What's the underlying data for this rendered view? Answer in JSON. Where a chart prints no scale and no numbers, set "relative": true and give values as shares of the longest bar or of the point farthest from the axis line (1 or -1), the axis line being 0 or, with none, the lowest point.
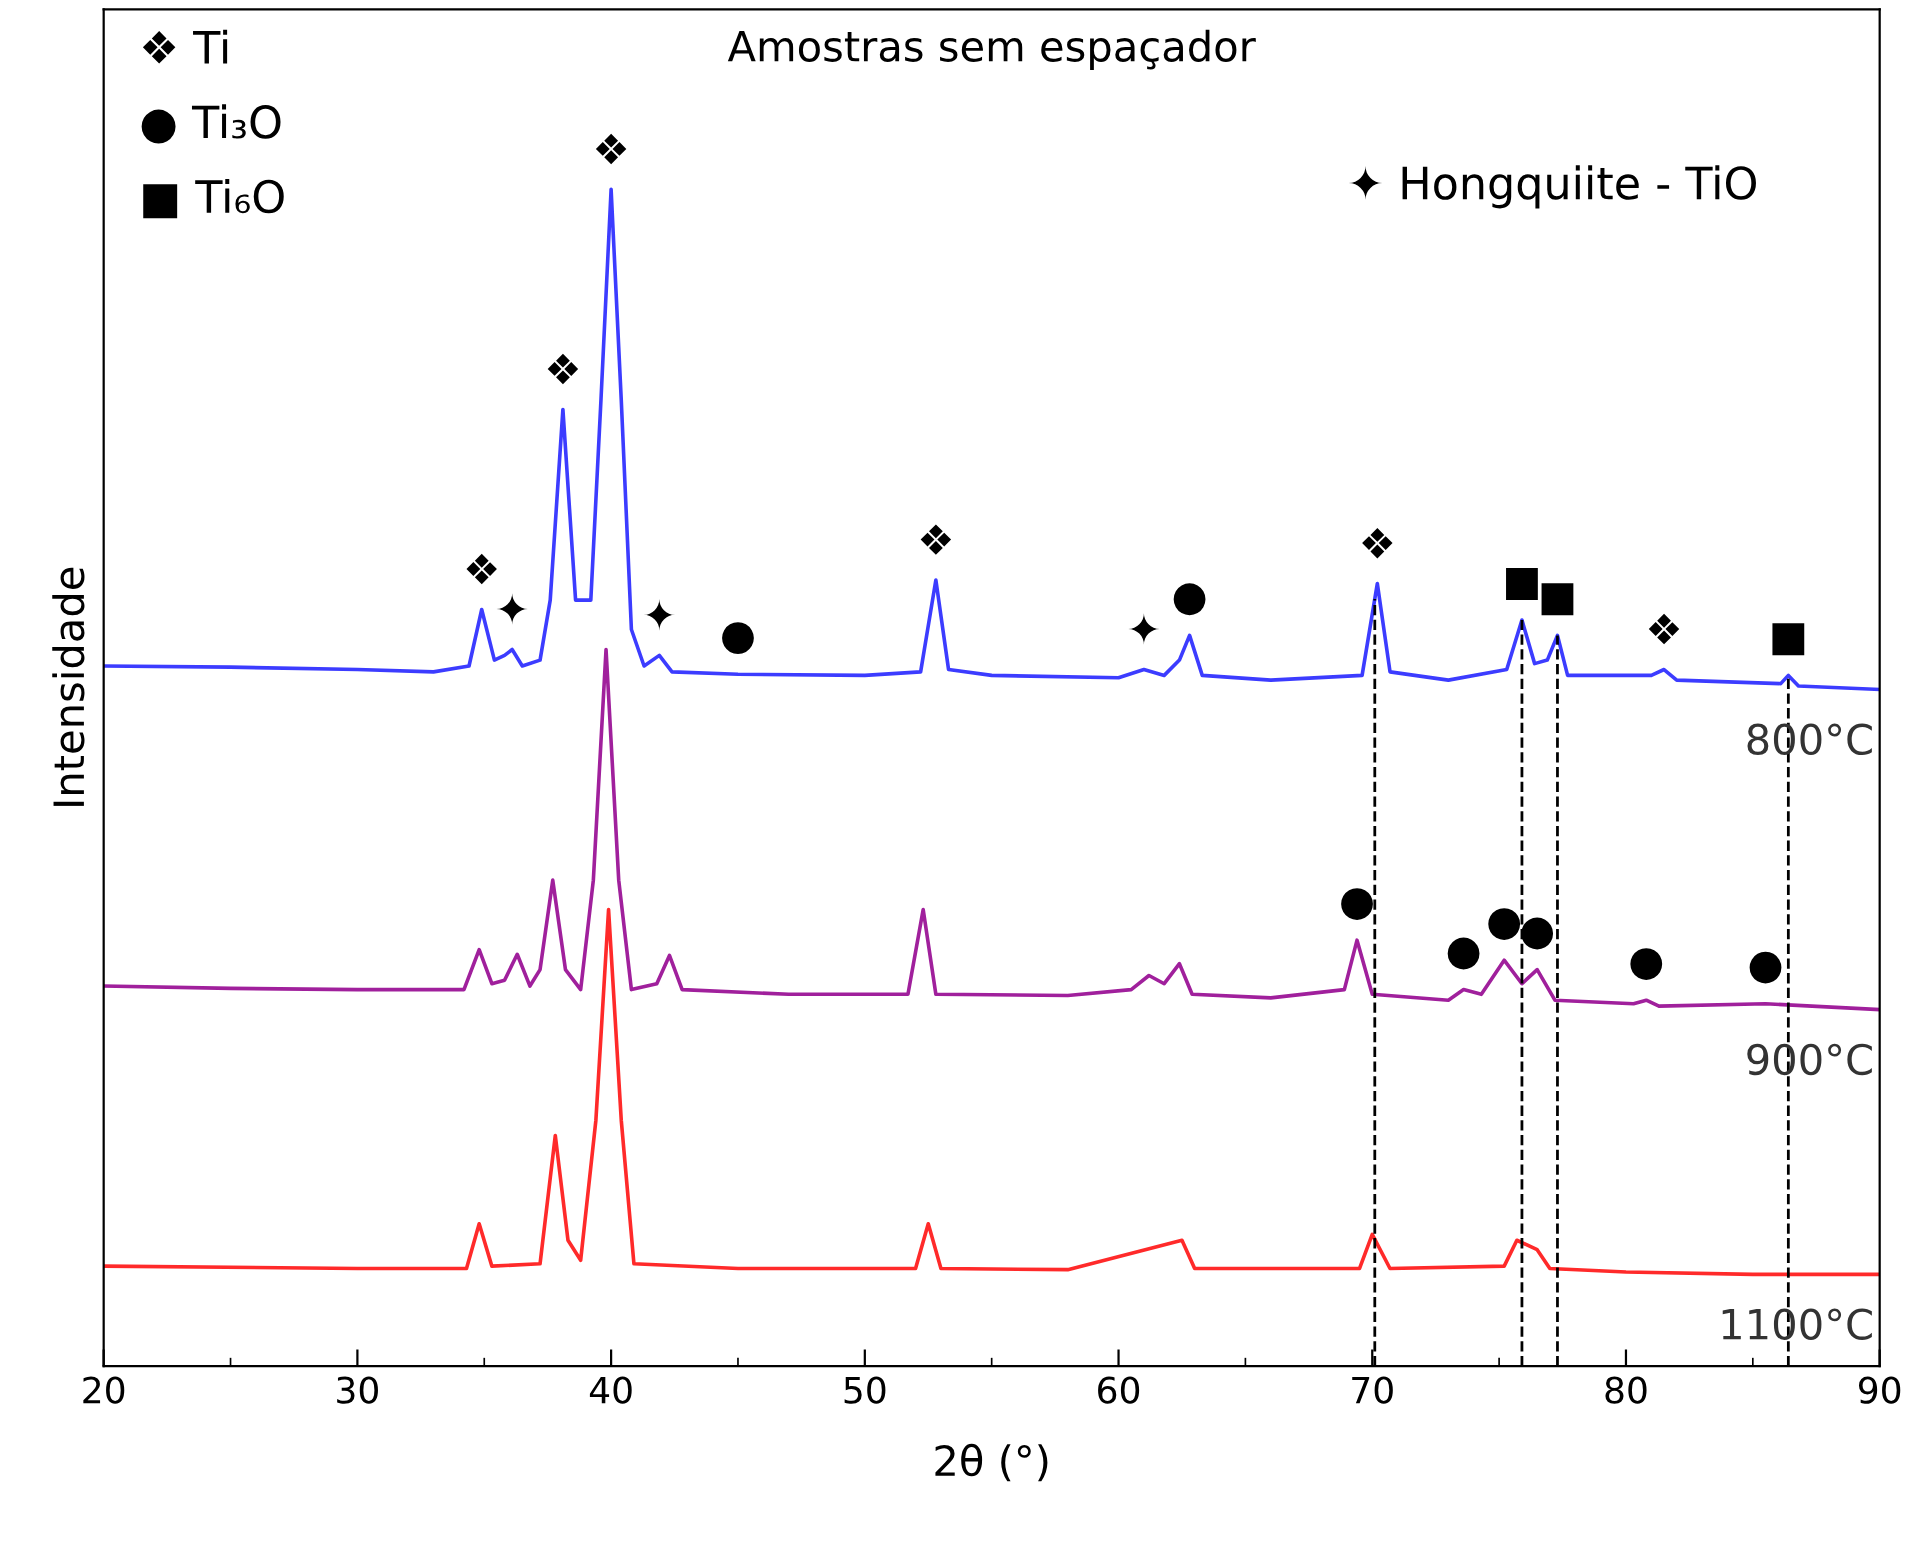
{
  "chart_data": {
    "type": "line",
    "title": "Amostras sem espaçador",
    "xlabel": "2θ (°)",
    "ylabel": "Intensidade",
    "relative": true,
    "xlim": [
      20,
      90
    ],
    "xticks": [
      20,
      30,
      40,
      50,
      60,
      70,
      80,
      90
    ],
    "grid": false,
    "legend": false,
    "marker": "none",
    "line_style": "solid",
    "series": [
      {
        "name": "800°C",
        "color": "#3c3cff",
        "x": [
          20,
          25,
          30,
          33,
          34.4,
          34.9,
          35.4,
          35.8,
          36.1,
          36.5,
          37.2,
          37.6,
          38.1,
          38.6,
          39.2,
          39.6,
          40.0,
          40.4,
          40.8,
          41.3,
          41.9,
          42.4,
          45,
          50,
          52.2,
          52.8,
          53.3,
          55,
          60,
          61,
          61.8,
          62.4,
          62.8,
          63.3,
          66,
          69.6,
          70.2,
          70.7,
          73,
          75.3,
          75.9,
          76.4,
          76.9,
          77.3,
          77.7,
          81,
          81.5,
          82,
          86.1,
          86.4,
          86.8,
          90
        ],
        "values": [
          0.595,
          0.594,
          0.592,
          0.59,
          0.595,
          0.643,
          0.6,
          0.604,
          0.609,
          0.595,
          0.6,
          0.651,
          0.813,
          0.651,
          0.651,
          0.821,
          1.0,
          0.821,
          0.626,
          0.595,
          0.604,
          0.59,
          0.588,
          0.587,
          0.59,
          0.668,
          0.592,
          0.587,
          0.585,
          0.592,
          0.587,
          0.6,
          0.621,
          0.587,
          0.583,
          0.587,
          0.665,
          0.59,
          0.583,
          0.592,
          0.634,
          0.597,
          0.6,
          0.621,
          0.587,
          0.587,
          0.592,
          0.583,
          0.58,
          0.587,
          0.578,
          0.575
        ]
      },
      {
        "name": "900°C",
        "color": "#a0209c",
        "x": [
          20,
          25,
          30,
          34.2,
          34.8,
          35.3,
          35.8,
          36.3,
          36.8,
          37.2,
          37.7,
          38.2,
          38.8,
          39.3,
          39.8,
          40.3,
          40.8,
          41.8,
          42.3,
          42.8,
          47,
          51.7,
          52.3,
          52.8,
          58,
          60.5,
          61.2,
          61.8,
          62.4,
          62.9,
          66,
          68.9,
          69.4,
          70,
          73,
          73.6,
          74.3,
          75.2,
          75.9,
          76.5,
          77.2,
          80.3,
          80.8,
          81.3,
          85.5,
          90
        ],
        "values": [
          0.323,
          0.321,
          0.32,
          0.32,
          0.354,
          0.325,
          0.328,
          0.35,
          0.323,
          0.337,
          0.413,
          0.337,
          0.32,
          0.413,
          0.609,
          0.413,
          0.32,
          0.325,
          0.349,
          0.32,
          0.316,
          0.316,
          0.388,
          0.316,
          0.315,
          0.32,
          0.332,
          0.325,
          0.342,
          0.316,
          0.313,
          0.32,
          0.362,
          0.316,
          0.311,
          0.32,
          0.316,
          0.345,
          0.325,
          0.337,
          0.311,
          0.308,
          0.311,
          0.306,
          0.308,
          0.303
        ]
      },
      {
        "name": "1100°C",
        "color": "#ff2a2a",
        "x": [
          20,
          30,
          34.3,
          34.8,
          35.3,
          37.2,
          37.8,
          38.3,
          38.8,
          39.4,
          39.9,
          40.4,
          40.9,
          45,
          52,
          52.5,
          53,
          58,
          62.5,
          63,
          69.5,
          70,
          70.7,
          75.2,
          75.7,
          76.5,
          77,
          80,
          85,
          90
        ],
        "values": [
          0.085,
          0.083,
          0.083,
          0.121,
          0.085,
          0.087,
          0.196,
          0.107,
          0.09,
          0.209,
          0.388,
          0.209,
          0.087,
          0.083,
          0.083,
          0.121,
          0.083,
          0.082,
          0.107,
          0.083,
          0.083,
          0.112,
          0.083,
          0.085,
          0.107,
          0.099,
          0.083,
          0.08,
          0.078,
          0.078
        ]
      }
    ],
    "ref_lines": [
      {
        "axis": "x",
        "value": 70.1,
        "color": "#000000",
        "line_style": "dashed"
      },
      {
        "axis": "x",
        "value": 75.9,
        "color": "#000000",
        "line_style": "dashed"
      },
      {
        "axis": "x",
        "value": 77.3,
        "color": "#000000",
        "line_style": "dashed"
      },
      {
        "axis": "x",
        "value": 86.4,
        "color": "#000000",
        "line_style": "dashed"
      }
    ],
    "annotations": [
      "❖ Ti",
      "● Ti₃O",
      "■ Ti₆O",
      "✦ Hongquiite - TiO",
      {
        "text": "❖",
        "x": 34.9,
        "y": 0.643
      },
      {
        "text": "✦",
        "x": 36.1,
        "y": 0.609
      },
      {
        "text": "❖",
        "x": 38.1,
        "y": 0.813
      },
      {
        "text": "❖",
        "x": 40.0,
        "y": 1.0
      },
      {
        "text": "✦",
        "x": 41.9,
        "y": 0.604
      },
      {
        "text": "●",
        "x": 45,
        "y": 0.588
      },
      {
        "text": "❖",
        "x": 52.8,
        "y": 0.668
      },
      {
        "text": "✦",
        "x": 61,
        "y": 0.592
      },
      {
        "text": "●",
        "x": 62.8,
        "y": 0.621
      },
      {
        "text": "❖",
        "x": 70.2,
        "y": 0.665
      },
      {
        "text": "■",
        "x": 75.9,
        "y": 0.634
      },
      {
        "text": "■",
        "x": 77.3,
        "y": 0.621
      },
      {
        "text": "❖",
        "x": 81.5,
        "y": 0.592
      },
      {
        "text": "■",
        "x": 86.4,
        "y": 0.587
      },
      {
        "text": "●",
        "x": 69.4,
        "y": 0.362
      },
      {
        "text": "●",
        "x": 73.6,
        "y": 0.32
      },
      {
        "text": "●",
        "x": 75.2,
        "y": 0.345
      },
      {
        "text": "●",
        "x": 76.5,
        "y": 0.337
      },
      {
        "text": "●",
        "x": 80.8,
        "y": 0.311
      },
      {
        "text": "●",
        "x": 85.5,
        "y": 0.308
      }
    ]
  }
}
